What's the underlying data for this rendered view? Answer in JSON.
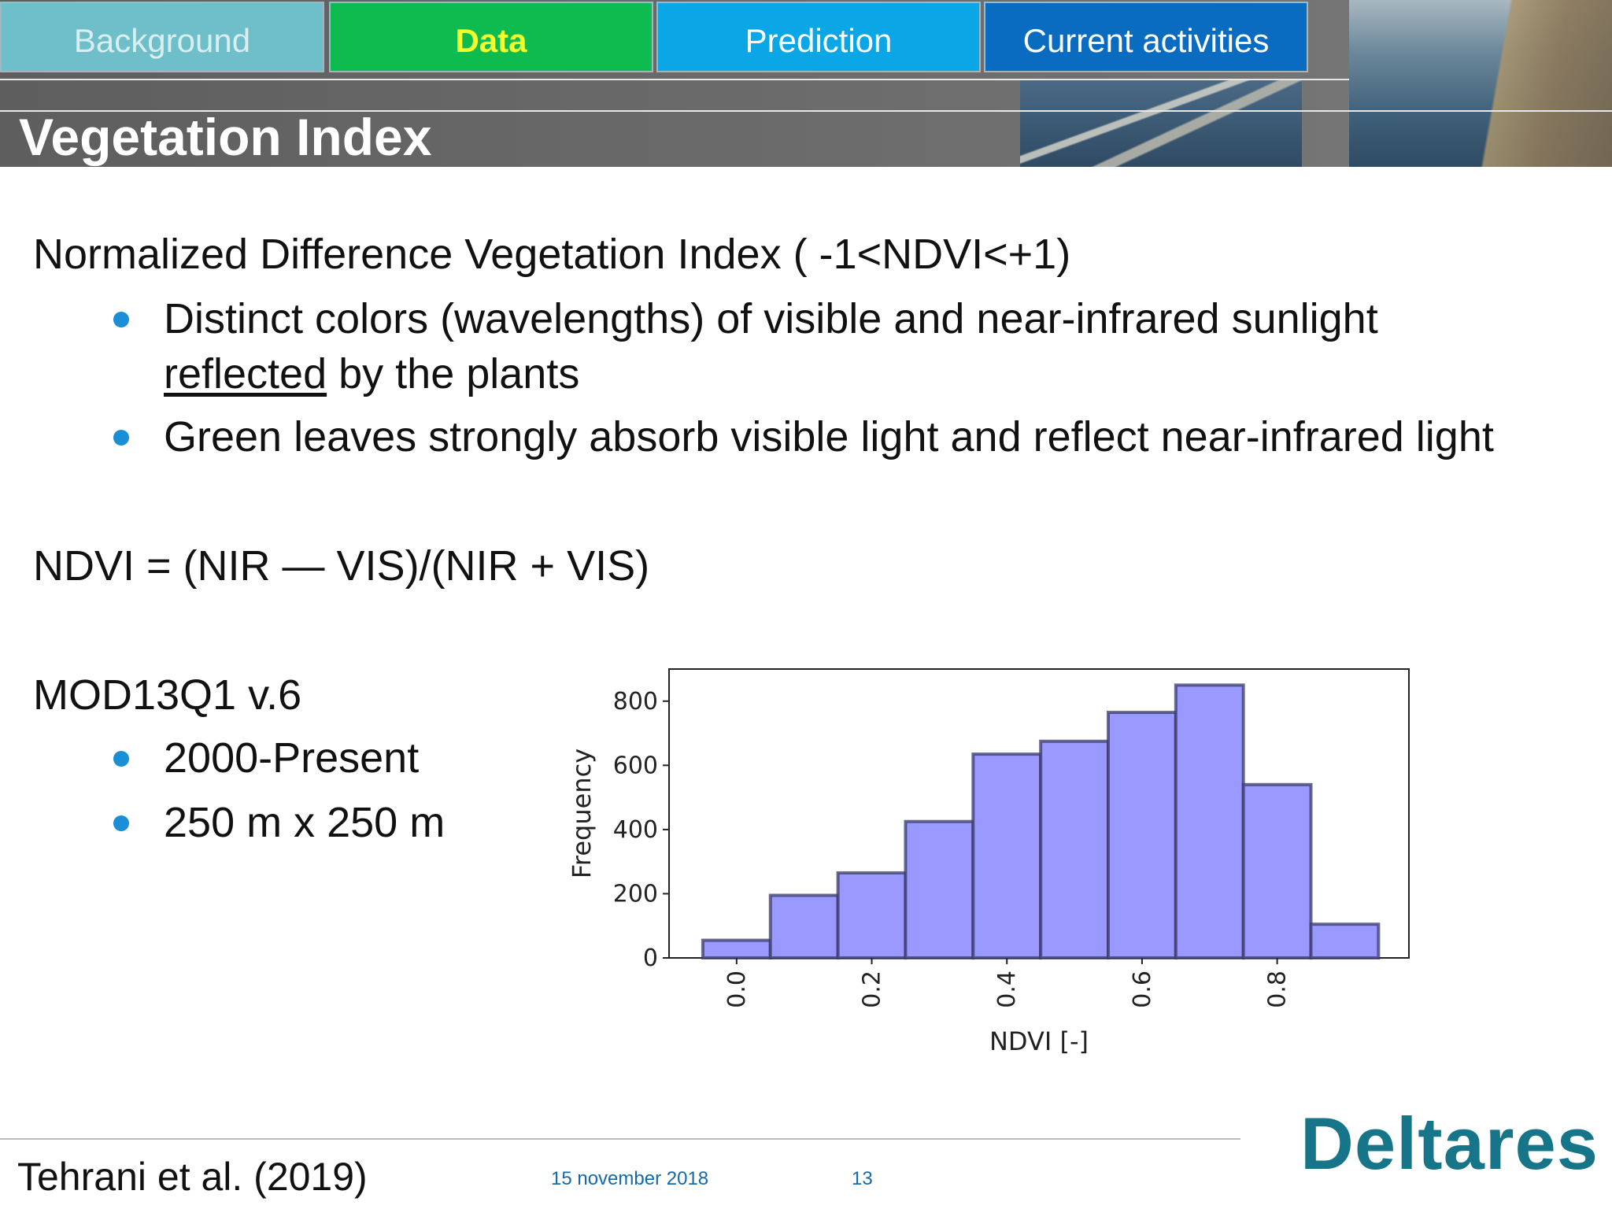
{
  "nav": {
    "tabs": [
      {
        "label": "Background"
      },
      {
        "label": "Data"
      },
      {
        "label": "Prediction"
      },
      {
        "label": "Current activities"
      }
    ],
    "active": "Data"
  },
  "page_title": "Vegetation Index",
  "body": {
    "heading1": "Normalized Difference Vegetation Index ( -1<NDVI<+1)",
    "bullet1_line1": "Distinct colors (wavelengths) of visible and near-infrared sunlight",
    "bullet1_line2_underlined": "reflected",
    "bullet1_line2_rest": " by the plants",
    "bullet2": "Green leaves strongly absorb visible light and reflect near-infrared light",
    "formula": "NDVI = (NIR — VIS)/(NIR + VIS)",
    "product": "MOD13Q1 v.6",
    "product_bullets": [
      "2000-Present",
      "250 m x 250 m"
    ]
  },
  "chart_data": {
    "type": "bar",
    "bin_edges": [
      -0.05,
      0.05,
      0.15,
      0.25,
      0.35,
      0.45,
      0.55,
      0.65,
      0.75,
      0.85,
      0.95
    ],
    "values": [
      55,
      195,
      265,
      425,
      635,
      675,
      765,
      850,
      540,
      105
    ],
    "xlabel": "NDVI [-]",
    "ylabel": "Frequency",
    "xticks": [
      "0.0",
      "0.2",
      "0.4",
      "0.6",
      "0.8"
    ],
    "xtick_values": [
      0.0,
      0.2,
      0.4,
      0.6,
      0.8
    ],
    "yticks": [
      "0",
      "200",
      "400",
      "600",
      "800"
    ],
    "ytick_values": [
      0,
      200,
      400,
      600,
      800
    ],
    "xlim": [
      -0.1,
      0.995
    ],
    "ylim": [
      0,
      900
    ],
    "grid": false,
    "bar_color": "#9999ff",
    "edge_color": "#3a3a6a"
  },
  "footer": {
    "citation": "Tehrani et al. (2019)",
    "date": "15 november 2018",
    "page": "13",
    "logo": "Deltares"
  }
}
